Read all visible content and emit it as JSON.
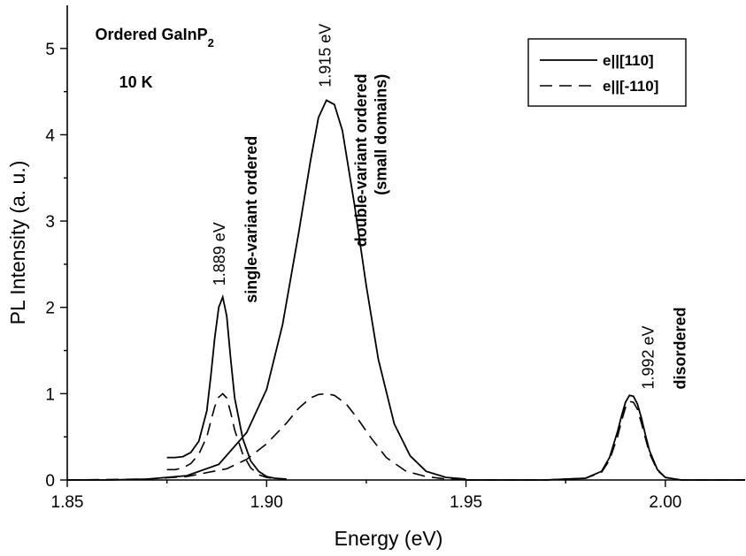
{
  "chart_data": {
    "type": "line",
    "title": "",
    "xlabel": "Energy (eV)",
    "ylabel": "PL Intensity (a. u.)",
    "xlim": [
      1.85,
      2.02
    ],
    "ylim": [
      0,
      5.5
    ],
    "x_ticks": [
      1.85,
      1.9,
      1.95,
      2.0
    ],
    "x_tick_labels": [
      "1.85",
      "1.90",
      "1.95",
      "2.00"
    ],
    "y_ticks": [
      0,
      1,
      2,
      3,
      4,
      5
    ],
    "y_tick_labels": [
      "0",
      "1",
      "2",
      "3",
      "4",
      "5"
    ],
    "grid": false,
    "legend_position": "top-right",
    "series": [
      {
        "name": "e||[110]",
        "style": "solid",
        "x": [
          1.875,
          1.877,
          1.879,
          1.881,
          1.883,
          1.885,
          1.886,
          1.887,
          1.888,
          1.889,
          1.89,
          1.891,
          1.892,
          1.894,
          1.896,
          1.898,
          1.9,
          1.902,
          1.905
        ],
        "y": [
          0.26,
          0.26,
          0.27,
          0.32,
          0.45,
          0.8,
          1.2,
          1.65,
          2.0,
          2.12,
          1.9,
          1.4,
          0.95,
          0.48,
          0.22,
          0.1,
          0.04,
          0.02,
          0.01
        ]
      },
      {
        "name": "e||[-110]",
        "style": "dashed",
        "x": [
          1.875,
          1.877,
          1.879,
          1.881,
          1.883,
          1.885,
          1.886,
          1.887,
          1.888,
          1.889,
          1.89,
          1.891,
          1.892,
          1.894,
          1.896,
          1.898,
          1.9,
          1.903
        ],
        "y": [
          0.12,
          0.12,
          0.14,
          0.19,
          0.3,
          0.5,
          0.68,
          0.85,
          0.96,
          1.0,
          0.95,
          0.78,
          0.58,
          0.3,
          0.14,
          0.06,
          0.03,
          0.01
        ]
      },
      {
        "name": "e||[110]",
        "style": "solid",
        "x": [
          1.85,
          1.86,
          1.87,
          1.88,
          1.888,
          1.895,
          1.9,
          1.904,
          1.908,
          1.911,
          1.913,
          1.915,
          1.917,
          1.919,
          1.922,
          1.925,
          1.928,
          1.932,
          1.936,
          1.94,
          1.945,
          1.95
        ],
        "y": [
          0.0,
          0.0,
          0.01,
          0.05,
          0.18,
          0.55,
          1.05,
          1.8,
          2.85,
          3.7,
          4.2,
          4.4,
          4.35,
          4.05,
          3.2,
          2.25,
          1.4,
          0.65,
          0.28,
          0.1,
          0.03,
          0.01
        ]
      },
      {
        "name": "e||[-110]",
        "style": "dashed",
        "x": [
          1.85,
          1.87,
          1.88,
          1.89,
          1.895,
          1.9,
          1.905,
          1.908,
          1.911,
          1.913,
          1.915,
          1.917,
          1.92,
          1.923,
          1.926,
          1.93,
          1.935,
          1.94,
          1.945,
          1.95
        ],
        "y": [
          0.0,
          0.01,
          0.04,
          0.13,
          0.24,
          0.42,
          0.66,
          0.83,
          0.95,
          0.99,
          1.0,
          0.98,
          0.88,
          0.7,
          0.5,
          0.26,
          0.1,
          0.04,
          0.01,
          0.0
        ]
      },
      {
        "name": "e||[110]",
        "style": "solid",
        "x": [
          1.95,
          1.97,
          1.98,
          1.984,
          1.986,
          1.988,
          1.989,
          1.99,
          1.991,
          1.992,
          1.993,
          1.994,
          1.995,
          1.996,
          1.998,
          2.0,
          2.004,
          2.01,
          2.02
        ],
        "y": [
          0.0,
          0.0,
          0.02,
          0.1,
          0.26,
          0.56,
          0.74,
          0.9,
          0.98,
          0.97,
          0.88,
          0.72,
          0.52,
          0.34,
          0.12,
          0.03,
          0.0,
          0.0,
          0.0
        ]
      },
      {
        "name": "e||[-110]",
        "style": "dashed",
        "x": [
          1.95,
          1.97,
          1.98,
          1.984,
          1.986,
          1.988,
          1.989,
          1.99,
          1.991,
          1.992,
          1.993,
          1.994,
          1.995,
          1.996,
          1.998,
          2.0,
          2.004,
          2.01,
          2.02
        ],
        "y": [
          0.0,
          0.0,
          0.02,
          0.09,
          0.23,
          0.5,
          0.68,
          0.84,
          0.91,
          0.9,
          0.82,
          0.66,
          0.48,
          0.31,
          0.11,
          0.03,
          0.0,
          0.0,
          0.0
        ]
      }
    ],
    "annotations": [
      {
        "text": "Ordered GaInP",
        "sub": "2",
        "bold": true,
        "x": 1.857,
        "y": 5.1,
        "rotate": 0
      },
      {
        "text": "10 K",
        "bold": true,
        "x": 1.863,
        "y": 4.55,
        "rotate": 0
      },
      {
        "text": "1.889 eV",
        "bold": false,
        "x": 1.8895,
        "y": 2.25,
        "rotate": -90
      },
      {
        "text": "single-variant ordered",
        "bold": true,
        "x": 1.8975,
        "y": 2.05,
        "rotate": -90
      },
      {
        "text": "1.915 eV",
        "bold": false,
        "x": 1.916,
        "y": 4.55,
        "rotate": -90
      },
      {
        "text": "double-variant ordered",
        "bold": true,
        "x": 1.925,
        "y": 2.7,
        "rotate": -90
      },
      {
        "text": "(small domains)",
        "bold": true,
        "x": 1.93,
        "y": 3.3,
        "rotate": -90
      },
      {
        "text": "1.992 eV",
        "bold": false,
        "x": 1.997,
        "y": 1.05,
        "rotate": -90
      },
      {
        "text": "disordered",
        "bold": true,
        "x": 2.005,
        "y": 1.05,
        "rotate": -90
      }
    ],
    "legend": [
      {
        "label": "e||[110]",
        "style": "solid"
      },
      {
        "label": "e||[-110]",
        "style": "dashed"
      }
    ]
  }
}
